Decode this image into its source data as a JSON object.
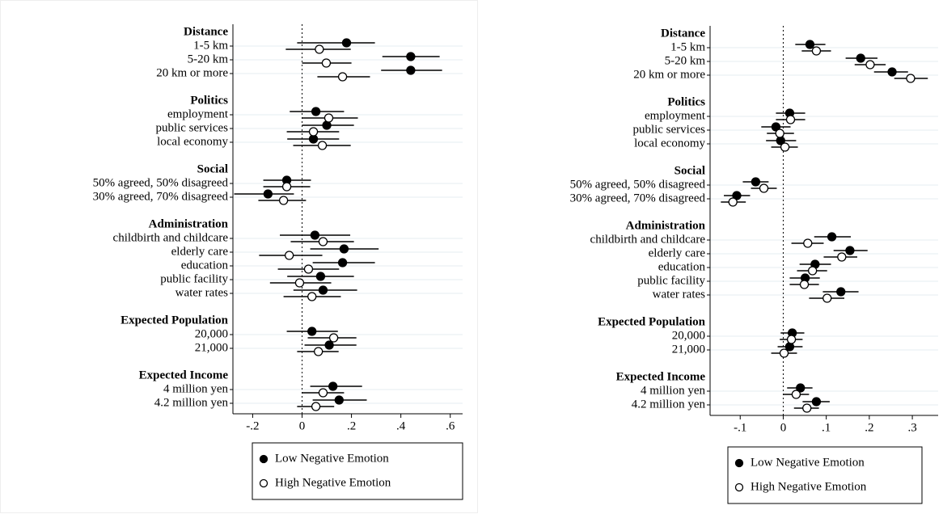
{
  "chart_data": [
    {
      "type": "coefplot",
      "legend": "bottom",
      "xline": 0,
      "xlim": [
        -0.28,
        0.65
      ],
      "xticks": [
        {
          "value": -0.2,
          "label": "-.2"
        },
        0,
        {
          "value": 0.2,
          "label": ".2"
        },
        {
          "value": 0.4,
          "label": ".4"
        },
        {
          "value": 0.6,
          "label": ".6"
        }
      ],
      "groups": [
        {
          "label": "Distance",
          "categories": [
            "1-5 km",
            "5-20 km",
            "20 km or more"
          ]
        },
        {
          "label": "Politics",
          "categories": [
            "employment",
            "public services",
            "local economy"
          ]
        },
        {
          "label": "Social",
          "categories": [
            "50% agreed, 50% disagreed",
            "30% agreed, 70% disagreed"
          ]
        },
        {
          "label": "Administration",
          "categories": [
            "childbirth and childcare",
            "elderly care",
            "education",
            "public facility",
            "water rates"
          ]
        },
        {
          "label": "Expected Population",
          "categories": [
            "20,000",
            "21,000"
          ]
        },
        {
          "label": "Expected Income",
          "categories": [
            "4 million yen",
            "4.2 million yen"
          ]
        }
      ],
      "series": [
        {
          "name": "Low Negative Emotion",
          "color": "#000000",
          "fill": "#000000",
          "values": [
            0.18,
            0.44,
            0.44,
            0.056,
            0.1,
            0.046,
            -0.062,
            -0.138,
            0.052,
            0.17,
            0.164,
            0.075,
            0.085,
            0.04,
            0.11,
            0.125,
            0.15
          ],
          "lower": [
            -0.02,
            0.325,
            0.32,
            -0.05,
            0,
            -0.06,
            -0.157,
            -0.275,
            -0.09,
            0.033,
            0.043,
            -0.06,
            -0.035,
            -0.062,
            0.01,
            0.033,
            0.043
          ],
          "upper": [
            0.295,
            0.557,
            0.567,
            0.17,
            0.21,
            0.15,
            0.036,
            -0.033,
            0.195,
            0.31,
            0.295,
            0.21,
            0.223,
            0.145,
            0.22,
            0.243,
            0.262
          ]
        },
        {
          "name": "High Negative Emotion",
          "color": "#000000",
          "fill": "#ffffff",
          "values": [
            0.07,
            0.098,
            0.164,
            0.108,
            0.046,
            0.082,
            -0.062,
            -0.075,
            0.085,
            -0.052,
            0.026,
            -0.01,
            0.04,
            0.128,
            0.066,
            0.085,
            0.056
          ],
          "lower": [
            -0.066,
            0,
            0.062,
            0,
            -0.062,
            -0.036,
            -0.157,
            -0.177,
            -0.046,
            -0.174,
            -0.098,
            -0.13,
            -0.075,
            0.023,
            -0.02,
            0,
            -0.02
          ],
          "upper": [
            0.197,
            0.2,
            0.275,
            0.226,
            0.15,
            0.197,
            0.033,
            0.016,
            0.21,
            0.082,
            0.15,
            0.118,
            0.157,
            0.22,
            0.148,
            0.17,
            0.13
          ]
        }
      ]
    },
    {
      "type": "coefplot",
      "legend": "bottom",
      "xline": 0,
      "xlim": [
        -0.17,
        0.36
      ],
      "xticks": [
        {
          "value": -0.1,
          "label": "-.1"
        },
        0,
        {
          "value": 0.1,
          "label": ".1"
        },
        {
          "value": 0.2,
          "label": ".2"
        },
        {
          "value": 0.3,
          "label": ".3"
        }
      ],
      "groups": [
        {
          "label": "Distance",
          "categories": [
            "1-5 km",
            "5-20 km",
            "20 km or more"
          ]
        },
        {
          "label": "Politics",
          "categories": [
            "employment",
            "public services",
            "local economy"
          ]
        },
        {
          "label": "Social",
          "categories": [
            "50% agreed, 50% disagreed",
            "30% agreed, 70% disagreed"
          ]
        },
        {
          "label": "Administration",
          "categories": [
            "childbirth and childcare",
            "elderly care",
            "education",
            "public facility",
            "water rates"
          ]
        },
        {
          "label": "Expected Population",
          "categories": [
            "20,000",
            "21,000"
          ]
        },
        {
          "label": "Expected Income",
          "categories": [
            "4 million yen",
            "4.2 million yen"
          ]
        }
      ],
      "series": [
        {
          "name": "Low Negative Emotion",
          "color": "#000000",
          "fill": "#000000",
          "values": [
            0.062,
            0.18,
            0.253,
            0.015,
            -0.017,
            -0.006,
            -0.064,
            -0.108,
            0.113,
            0.155,
            0.074,
            0.051,
            0.134,
            0.021,
            0.015,
            0.04,
            0.077
          ],
          "lower": [
            0.028,
            0.145,
            0.211,
            -0.017,
            -0.051,
            -0.04,
            -0.094,
            -0.138,
            0.072,
            0.117,
            0.038,
            0.015,
            0.092,
            -0.006,
            -0.013,
            0.009,
            0.045
          ],
          "upper": [
            0.098,
            0.219,
            0.29,
            0.051,
            0.017,
            0.03,
            -0.034,
            -0.077,
            0.157,
            0.196,
            0.111,
            0.085,
            0.175,
            0.049,
            0.045,
            0.068,
            0.108
          ]
        },
        {
          "name": "High Negative Emotion",
          "color": "#000000",
          "fill": "#ffffff",
          "values": [
            0.077,
            0.202,
            0.296,
            0.017,
            -0.008,
            0.004,
            -0.045,
            -0.117,
            0.057,
            0.136,
            0.068,
            0.049,
            0.102,
            0.019,
            0.002,
            0.03,
            0.055
          ],
          "lower": [
            0.043,
            0.166,
            0.258,
            -0.017,
            -0.038,
            -0.028,
            -0.075,
            -0.145,
            0.019,
            0.094,
            0.032,
            0.015,
            0.06,
            -0.008,
            -0.028,
            0,
            0.025
          ],
          "upper": [
            0.111,
            0.238,
            0.336,
            0.051,
            0.025,
            0.034,
            -0.015,
            -0.087,
            0.094,
            0.172,
            0.102,
            0.083,
            0.142,
            0.045,
            0.032,
            0.06,
            0.083
          ]
        }
      ]
    }
  ]
}
